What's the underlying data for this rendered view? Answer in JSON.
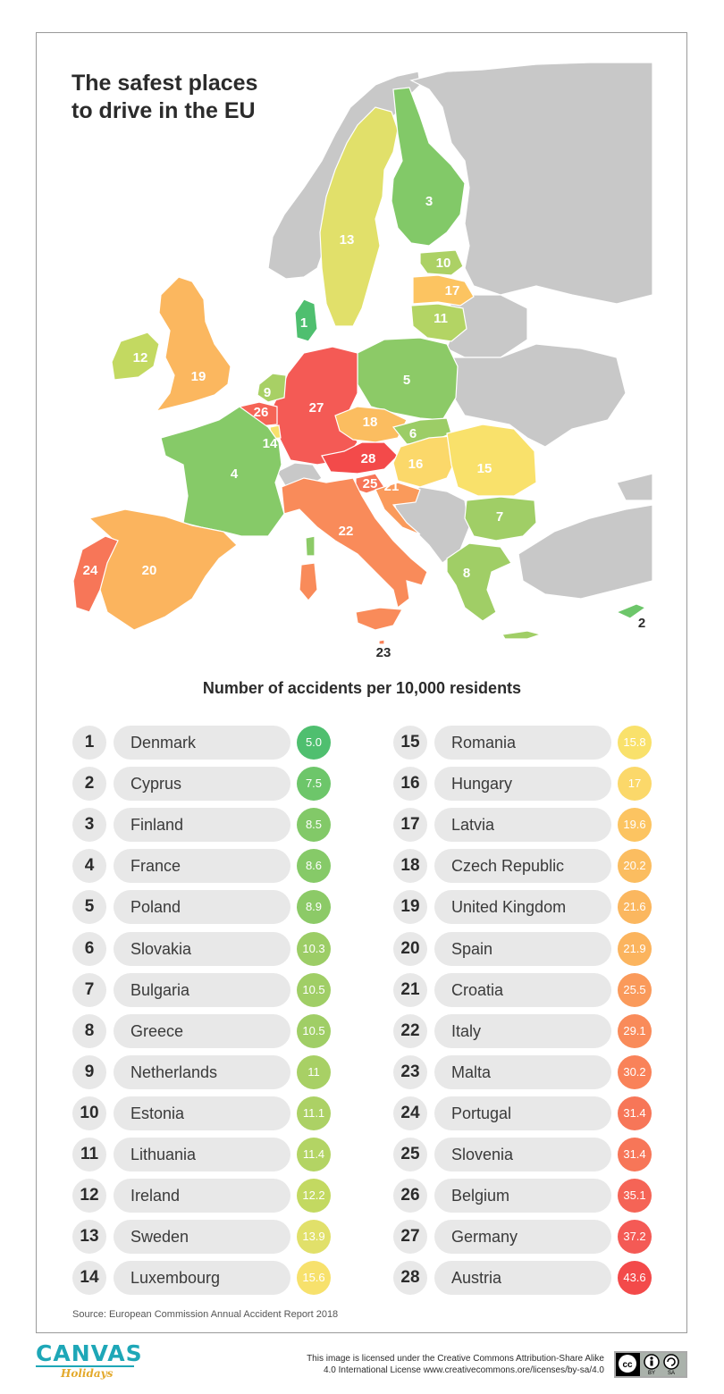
{
  "title_lines": [
    "The safest places",
    "to drive in the EU"
  ],
  "subtitle": "Number of accidents per 10,000 residents",
  "source": "Source: European Commission Annual Accident Report 2018",
  "license_lines": [
    "This image is licensed under the Creative Commons Attribution-Share Alike",
    "4.0 International License www.creativecommons.ore/licenses/by-sa/4.0"
  ],
  "brand": {
    "name": "CANVAS",
    "sub": "Holidays"
  },
  "cc_badge": {
    "by": "BY",
    "sa": "SA"
  },
  "colors": {
    "land": "#c8c8c8",
    "scale": {
      "darkgreen": "#4fbf6f",
      "green": "#8cc96a",
      "lightgreen": "#a9d168",
      "yellowgreen": "#c6d95e",
      "yellow": "#f9e06b",
      "paleorange": "#fbd369",
      "orange": "#f9b85f",
      "darkorange": "#f98c5a",
      "red": "#f45555",
      "deepred": "#f34a4a"
    }
  },
  "countries": [
    {
      "rank": "1",
      "name": "Denmark",
      "value": "5.0",
      "color": "#4fbf6f"
    },
    {
      "rank": "2",
      "name": "Cyprus",
      "value": "7.5",
      "color": "#6dc66a"
    },
    {
      "rank": "3",
      "name": "Finland",
      "value": "8.5",
      "color": "#82c968"
    },
    {
      "rank": "4",
      "name": "France",
      "value": "8.6",
      "color": "#86ca68"
    },
    {
      "rank": "5",
      "name": "Poland",
      "value": "8.9",
      "color": "#8cca67"
    },
    {
      "rank": "6",
      "name": "Slovakia",
      "value": "10.3",
      "color": "#9ccd66"
    },
    {
      "rank": "7",
      "name": "Bulgaria",
      "value": "10.5",
      "color": "#a0ce66"
    },
    {
      "rank": "8",
      "name": "Greece",
      "value": "10.5",
      "color": "#a0ce66"
    },
    {
      "rank": "9",
      "name": "Netherlands",
      "value": "11",
      "color": "#a8d065"
    },
    {
      "rank": "10",
      "name": "Estonia",
      "value": "11.1",
      "color": "#acd165"
    },
    {
      "rank": "11",
      "name": "Lithuania",
      "value": "11.4",
      "color": "#b3d464"
    },
    {
      "rank": "12",
      "name": "Ireland",
      "value": "12.2",
      "color": "#c3d961"
    },
    {
      "rank": "13",
      "name": "Sweden",
      "value": "13.9",
      "color": "#e1e06a"
    },
    {
      "rank": "14",
      "name": "Luxembourg",
      "value": "15.6",
      "color": "#f7e16c"
    },
    {
      "rank": "15",
      "name": "Romania",
      "value": "15.8",
      "color": "#f9e16b"
    },
    {
      "rank": "16",
      "name": "Hungary",
      "value": "17",
      "color": "#fbd86a"
    },
    {
      "rank": "17",
      "name": "Latvia",
      "value": "19.6",
      "color": "#fcc461"
    },
    {
      "rank": "18",
      "name": "Czech Republic",
      "value": "20.2",
      "color": "#fbbd60"
    },
    {
      "rank": "19",
      "name": "United Kingdom",
      "value": "21.6",
      "color": "#fbb75f"
    },
    {
      "rank": "20",
      "name": "Spain",
      "value": "21.9",
      "color": "#fbb45e"
    },
    {
      "rank": "21",
      "name": "Croatia",
      "value": "25.5",
      "color": "#fa9a5b"
    },
    {
      "rank": "22",
      "name": "Italy",
      "value": "29.1",
      "color": "#f98b5a"
    },
    {
      "rank": "23",
      "name": "Malta",
      "value": "30.2",
      "color": "#f98259"
    },
    {
      "rank": "24",
      "name": "Portugal",
      "value": "31.4",
      "color": "#f77658"
    },
    {
      "rank": "25",
      "name": "Slovenia",
      "value": "31.4",
      "color": "#f77658"
    },
    {
      "rank": "26",
      "name": "Belgium",
      "value": "35.1",
      "color": "#f56456"
    },
    {
      "rank": "27",
      "name": "Germany",
      "value": "37.2",
      "color": "#f45a55"
    },
    {
      "rank": "28",
      "name": "Austria",
      "value": "43.6",
      "color": "#f34a4a"
    }
  ]
}
